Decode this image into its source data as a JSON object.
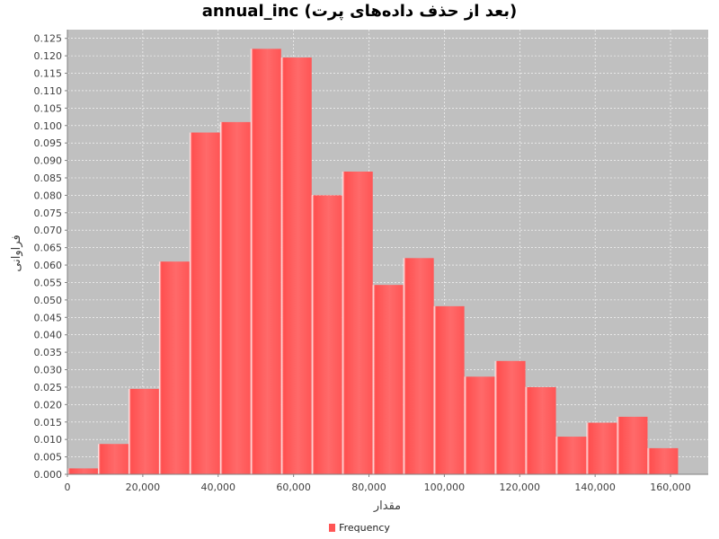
{
  "chart_data": {
    "type": "bar",
    "title": "annual_inc (بعد از حذف داده‌های پرت)",
    "xlabel": "مقدار",
    "ylabel": "فراوانی",
    "xlim": [
      0,
      170000
    ],
    "ylim": [
      0,
      0.1275
    ],
    "x_ticks": [
      0,
      20000,
      40000,
      60000,
      80000,
      100000,
      120000,
      140000,
      160000
    ],
    "x_tick_labels": [
      "0",
      "20,000",
      "40,000",
      "60,000",
      "80,000",
      "100,000",
      "120,000",
      "140,000",
      "160,000"
    ],
    "y_ticks": [
      0,
      0.005,
      0.01,
      0.015,
      0.02,
      0.025,
      0.03,
      0.035,
      0.04,
      0.045,
      0.05,
      0.055,
      0.06,
      0.065,
      0.07,
      0.075,
      0.08,
      0.085,
      0.09,
      0.095,
      0.1,
      0.105,
      0.11,
      0.115,
      0.12,
      0.125
    ],
    "y_tick_labels": [
      "0.000",
      "0.005",
      "0.010",
      "0.015",
      "0.020",
      "0.025",
      "0.030",
      "0.035",
      "0.040",
      "0.045",
      "0.050",
      "0.055",
      "0.060",
      "0.065",
      "0.070",
      "0.075",
      "0.080",
      "0.085",
      "0.090",
      "0.095",
      "0.100",
      "0.105",
      "0.110",
      "0.115",
      "0.120",
      "0.125"
    ],
    "series": [
      {
        "name": "Frequency",
        "color": "#ff5555",
        "bins": [
          {
            "start": 0,
            "end": 8100,
            "value": 0.0017
          },
          {
            "start": 8100,
            "end": 16200,
            "value": 0.0087
          },
          {
            "start": 16200,
            "end": 24300,
            "value": 0.0245
          },
          {
            "start": 24300,
            "end": 32400,
            "value": 0.061
          },
          {
            "start": 32400,
            "end": 40500,
            "value": 0.098
          },
          {
            "start": 40500,
            "end": 48600,
            "value": 0.101
          },
          {
            "start": 48600,
            "end": 56700,
            "value": 0.122
          },
          {
            "start": 56700,
            "end": 64800,
            "value": 0.1195
          },
          {
            "start": 64800,
            "end": 72900,
            "value": 0.08
          },
          {
            "start": 72900,
            "end": 81000,
            "value": 0.0868
          },
          {
            "start": 81000,
            "end": 89100,
            "value": 0.0543
          },
          {
            "start": 89100,
            "end": 97200,
            "value": 0.062
          },
          {
            "start": 97200,
            "end": 105300,
            "value": 0.0482
          },
          {
            "start": 105300,
            "end": 113400,
            "value": 0.028
          },
          {
            "start": 113400,
            "end": 121500,
            "value": 0.0325
          },
          {
            "start": 121500,
            "end": 129600,
            "value": 0.025
          },
          {
            "start": 129600,
            "end": 137700,
            "value": 0.0108
          },
          {
            "start": 137700,
            "end": 145800,
            "value": 0.0148
          },
          {
            "start": 145800,
            "end": 153900,
            "value": 0.0165
          },
          {
            "start": 153900,
            "end": 162000,
            "value": 0.0075
          }
        ]
      }
    ],
    "plot_background": "#c0c0c0",
    "grid": true,
    "legend": "bottom-center"
  }
}
